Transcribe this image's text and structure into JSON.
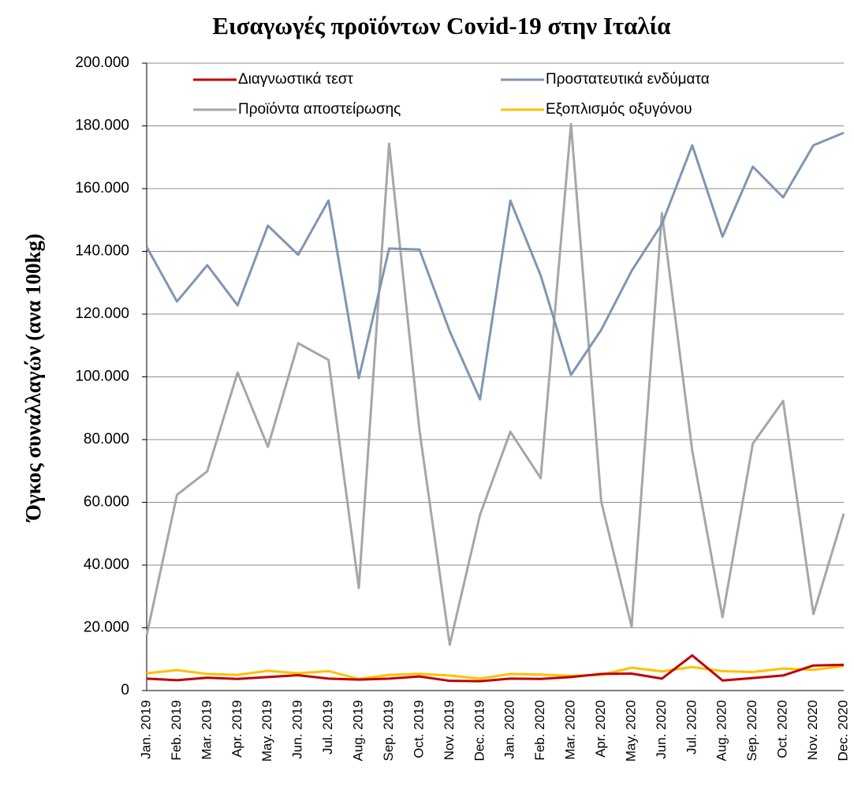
{
  "chart_data": {
    "type": "line",
    "title": "Εισαγωγές προϊόντων Covid-19 στην Ιταλία",
    "y_label": "Όγκος συναλλαγών  (ανα 100kg)",
    "categories": [
      "Jan. 2019",
      "Feb. 2019",
      "Mar. 2019",
      "Apr. 2019",
      "May. 2019",
      "Jun. 2019",
      "Jul. 2019",
      "Aug. 2019",
      "Sep. 2019",
      "Oct. 2019",
      "Nov. 2019",
      "Dec. 2019",
      "Jan. 2020",
      "Feb. 2020",
      "Mar. 2020",
      "Apr. 2020",
      "May. 2020",
      "Jun. 2020",
      "Jul. 2020",
      "Aug. 2020",
      "Sep. 2020",
      "Oct. 2020",
      "Nov. 2020",
      "Dec. 2020"
    ],
    "series": [
      {
        "name": "Διαγνωστικά τεστ",
        "color": "#c00000",
        "values": [
          3800,
          3300,
          4100,
          3700,
          4300,
          4900,
          3800,
          3500,
          3800,
          4500,
          3100,
          3000,
          3800,
          3700,
          4300,
          5300,
          5400,
          3800,
          11200,
          3200,
          4000,
          4800,
          8000,
          8200
        ]
      },
      {
        "name": "Προστατευτικά ενδύματα",
        "color": "#7f96b2",
        "values": [
          141400,
          124000,
          135600,
          122800,
          148200,
          138900,
          156200,
          99600,
          140900,
          140600,
          114500,
          92800,
          156200,
          132300,
          100600,
          115000,
          133800,
          148700,
          173800,
          144700,
          167000,
          157200,
          173800,
          177800
        ]
      },
      {
        "name": "Προϊόντα αποστείρωσης",
        "color": "#a6a6a6",
        "values": [
          17600,
          62400,
          69900,
          101400,
          77700,
          110700,
          105400,
          32700,
          174300,
          83000,
          14600,
          56100,
          82500,
          67700,
          180600,
          60100,
          20400,
          152200,
          76500,
          23400,
          78700,
          92300,
          24400,
          56400
        ]
      },
      {
        "name": "Εξοπλισμός οξυγόνου",
        "color": "#ffc000",
        "values": [
          5500,
          6500,
          5300,
          5000,
          6300,
          5500,
          6200,
          3700,
          5000,
          5300,
          4800,
          3800,
          5300,
          5100,
          4700,
          5000,
          7300,
          6100,
          7500,
          6200,
          5900,
          7000,
          6600,
          7800
        ]
      }
    ],
    "ylim": [
      0,
      200000
    ],
    "yticks": [
      0,
      {
        "value": 20000,
        "label": "20.000"
      },
      {
        "value": 40000,
        "label": "40.000"
      },
      {
        "value": 60000,
        "label": "60.000"
      },
      {
        "value": 80000,
        "label": "80.000"
      },
      {
        "value": 100000,
        "label": "100.000"
      },
      {
        "value": 120000,
        "label": "120.000"
      },
      {
        "value": 140000,
        "label": "140.000"
      },
      {
        "value": 160000,
        "label": "160.000"
      },
      {
        "value": 180000,
        "label": "180.000"
      },
      {
        "value": 200000,
        "label": "200.000"
      }
    ],
    "grid": true
  }
}
